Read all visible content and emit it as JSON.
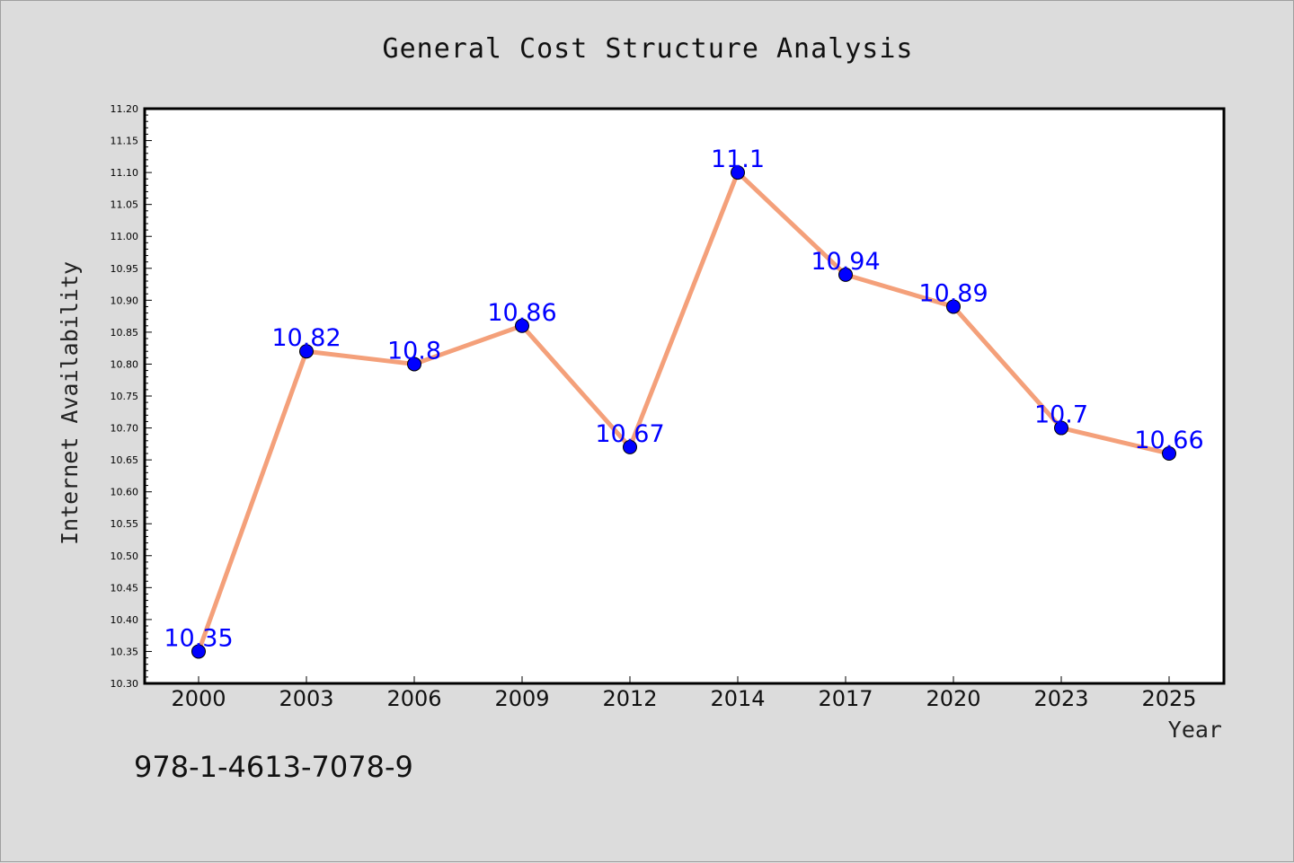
{
  "chart_data": {
    "type": "line",
    "title": "General Cost Structure Analysis",
    "xlabel": "Year",
    "ylabel": "Internet Availability",
    "categories": [
      "2000",
      "2003",
      "2006",
      "2009",
      "2012",
      "2014",
      "2017",
      "2020",
      "2023",
      "2025"
    ],
    "values": [
      10.35,
      10.82,
      10.8,
      10.86,
      10.67,
      11.1,
      10.94,
      10.89,
      10.7,
      10.66
    ],
    "data_labels": [
      "10.35",
      "10.82",
      "10.8",
      "10.86",
      "10.67",
      "11.1",
      "10.94",
      "10.89",
      "10.7",
      "10.66"
    ],
    "ylim": [
      10.3,
      11.2
    ],
    "yticks": [
      "10.30",
      "10.35",
      "10.40",
      "10.45",
      "10.50",
      "10.55",
      "10.60",
      "10.65",
      "10.70",
      "10.75",
      "10.80",
      "10.85",
      "10.90",
      "10.95",
      "11.00",
      "11.05",
      "11.10",
      "11.15",
      "11.20"
    ],
    "grid": false,
    "line_color": "#f4a07a",
    "marker_color": "#0000ff",
    "label_color": "#0000ff"
  },
  "footer_text": "978-1-4613-7078-9"
}
